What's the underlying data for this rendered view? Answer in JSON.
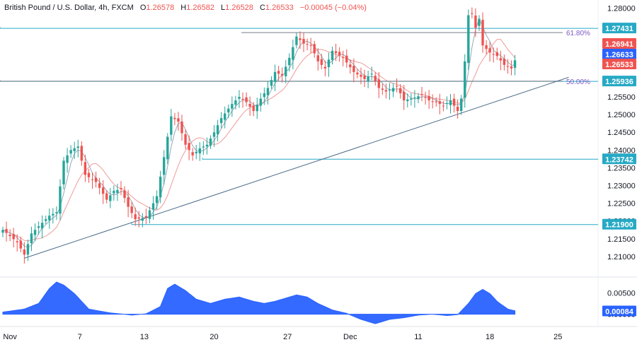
{
  "header": {
    "symbol": "British Pound / U.S. Dollar, 4h, FXCM",
    "open_label": "O",
    "open": "1.26578",
    "high_label": "H",
    "high": "1.26582",
    "low_label": "L",
    "low": "1.26528",
    "close_label": "C",
    "close": "1.26533",
    "change": "−0.00045 (−0.04%)"
  },
  "colors": {
    "up": "#26a69a",
    "down": "#ef5350",
    "level": "#26a9c5",
    "fib": "#787b86",
    "trendline": "#4a6a8a",
    "osc": "#2962ff",
    "ma_fast": "#9aa7b8",
    "ma_slow": "#ef9a9a",
    "badge_blue": "#2962ff"
  },
  "chart_data": [
    {
      "type": "candlestick",
      "instrument": "British Pound / U.S. Dollar",
      "timeframe": "4h",
      "ylim": [
        1.205,
        1.2815
      ],
      "y_ticks": [
        "1.28000",
        "1.27500",
        "1.27000",
        "1.26500",
        "1.26000",
        "1.25500",
        "1.25000",
        "1.24500",
        "1.24000",
        "1.23500",
        "1.23000",
        "1.22500",
        "1.22000",
        "1.21500",
        "1.21000"
      ],
      "x_ticks": [
        "Nov",
        "7",
        "13",
        "20",
        "27",
        "Dec",
        "11",
        "18",
        "25"
      ],
      "anchors": [
        [
          0,
          1.2175
        ],
        [
          4,
          1.214
        ],
        [
          6,
          1.2105
        ],
        [
          8,
          1.2165
        ],
        [
          13,
          1.2215
        ],
        [
          15,
          1.2225
        ],
        [
          17,
          1.237
        ],
        [
          19,
          1.24
        ],
        [
          21,
          1.241
        ],
        [
          23,
          1.233
        ],
        [
          26,
          1.231
        ],
        [
          29,
          1.226
        ],
        [
          31,
          1.2285
        ],
        [
          33,
          1.229
        ],
        [
          35,
          1.224
        ],
        [
          37,
          1.2205
        ],
        [
          40,
          1.221
        ],
        [
          43,
          1.227
        ],
        [
          45,
          1.238
        ],
        [
          47,
          1.2495
        ],
        [
          49,
          1.248
        ],
        [
          51,
          1.2415
        ],
        [
          53,
          1.2385
        ],
        [
          55,
          1.2405
        ],
        [
          57,
          1.2415
        ],
        [
          59,
          1.245
        ],
        [
          61,
          1.249
        ],
        [
          64,
          1.253
        ],
        [
          66,
          1.255
        ],
        [
          68,
          1.2535
        ],
        [
          70,
          1.251
        ],
        [
          72,
          1.2545
        ],
        [
          74,
          1.2575
        ],
        [
          76,
          1.262
        ],
        [
          78,
          1.261
        ],
        [
          80,
          1.266
        ],
        [
          82,
          1.272
        ],
        [
          84,
          1.27
        ],
        [
          86,
          1.2695
        ],
        [
          88,
          1.265
        ],
        [
          90,
          1.263
        ],
        [
          92,
          1.268
        ],
        [
          95,
          1.266
        ],
        [
          98,
          1.262
        ],
        [
          101,
          1.26
        ],
        [
          103,
          1.2615
        ],
        [
          105,
          1.2575
        ],
        [
          107,
          1.2565
        ],
        [
          110,
          1.258
        ],
        [
          112,
          1.254
        ],
        [
          114,
          1.2545
        ],
        [
          117,
          1.2555
        ],
        [
          119,
          1.254
        ],
        [
          121,
          1.2535
        ],
        [
          123,
          1.2525
        ],
        [
          125,
          1.254
        ],
        [
          127,
          1.251
        ],
        [
          128,
          1.2545
        ],
        [
          129,
          1.265
        ],
        [
          130,
          1.278
        ],
        [
          131,
          1.2785
        ],
        [
          132,
          1.2745
        ],
        [
          133,
          1.277
        ],
        [
          134,
          1.2695
        ],
        [
          136,
          1.2675
        ],
        [
          138,
          1.2665
        ],
        [
          140,
          1.264
        ],
        [
          142,
          1.263
        ],
        [
          143,
          1.2653
        ]
      ],
      "price_levels": [
        {
          "label": "1.27431",
          "value": 1.27431,
          "style": "horizontal-line"
        },
        {
          "label": "1.25936",
          "value": 1.25936,
          "style": "horizontal-line"
        },
        {
          "label": "1.23742",
          "value": 1.23742,
          "style": "horizontal-line"
        },
        {
          "label": "1.21900",
          "value": 1.219,
          "style": "horizontal-line"
        }
      ],
      "fib_levels": [
        {
          "label": "61.80%",
          "value": 1.2731
        },
        {
          "label": "50.00%",
          "value": 1.2594
        }
      ],
      "price_badges": [
        {
          "label": "1.26941",
          "value": 1.26941,
          "color": "down"
        },
        {
          "label": "1.26633",
          "value": 1.26633,
          "color": "blue"
        },
        {
          "label": "1.26533",
          "value": 1.26533,
          "color": "down"
        }
      ],
      "trendline": {
        "from": [
          6,
          1.2095
        ],
        "to": [
          158,
          1.2605
        ]
      },
      "moving_averages": [
        "fast",
        "slow"
      ]
    },
    {
      "type": "area",
      "name": "oscillator",
      "ylim": [
        -0.0022,
        0.0085
      ],
      "y_ticks": [
        "0.00500",
        "0.00000"
      ],
      "current": {
        "label": "0.00084",
        "value": 0.00084
      },
      "anchors": [
        [
          0,
          0.0005
        ],
        [
          6,
          0.0012
        ],
        [
          10,
          0.0025
        ],
        [
          13,
          0.006
        ],
        [
          15,
          0.0075
        ],
        [
          17,
          0.0068
        ],
        [
          20,
          0.0048
        ],
        [
          24,
          0.0012
        ],
        [
          30,
          0.0003
        ],
        [
          36,
          -0.0002
        ],
        [
          40,
          0.0001
        ],
        [
          44,
          0.0018
        ],
        [
          46,
          0.006
        ],
        [
          48,
          0.007
        ],
        [
          51,
          0.0055
        ],
        [
          54,
          0.0035
        ],
        [
          58,
          0.0025
        ],
        [
          62,
          0.0035
        ],
        [
          66,
          0.004
        ],
        [
          70,
          0.003
        ],
        [
          73,
          0.0025
        ],
        [
          76,
          0.003
        ],
        [
          80,
          0.004
        ],
        [
          82,
          0.0045
        ],
        [
          85,
          0.004
        ],
        [
          88,
          0.0025
        ],
        [
          92,
          0.001
        ],
        [
          96,
          0.0002
        ],
        [
          100,
          -0.0012
        ],
        [
          104,
          -0.0022
        ],
        [
          108,
          -0.0012
        ],
        [
          112,
          -0.0008
        ],
        [
          116,
          -0.0002
        ],
        [
          120,
          0.0
        ],
        [
          124,
          -0.0003
        ],
        [
          127,
          -0.0001
        ],
        [
          130,
          0.0025
        ],
        [
          132,
          0.0048
        ],
        [
          134,
          0.0058
        ],
        [
          136,
          0.0048
        ],
        [
          138,
          0.003
        ],
        [
          141,
          0.0012
        ],
        [
          143,
          0.0008
        ]
      ]
    }
  ]
}
